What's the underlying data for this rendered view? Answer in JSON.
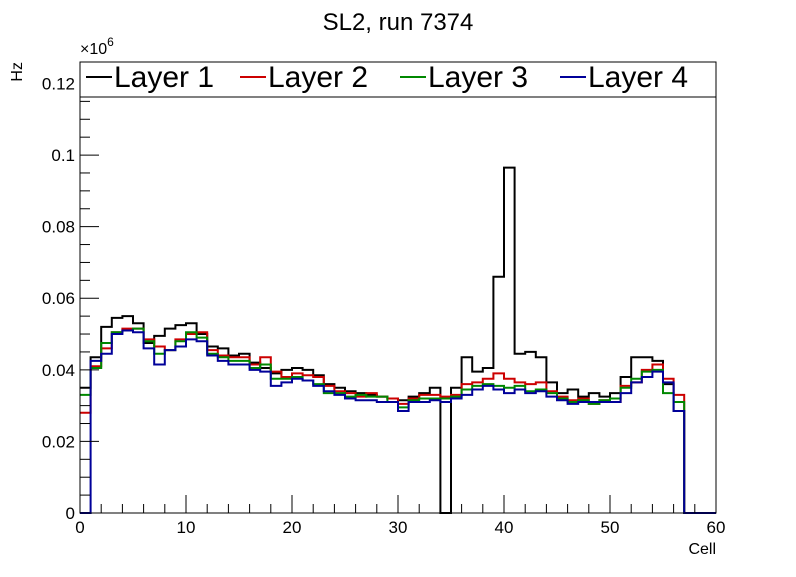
{
  "chart_data": {
    "type": "line",
    "title": "SL2, run 7374",
    "xlabel": "Cell",
    "ylabel": "Hz",
    "xlim": [
      0,
      60
    ],
    "ylim": [
      0,
      0.126
    ],
    "y_exponent_label": "×10",
    "y_exponent_power": "6",
    "x_ticks": [
      0,
      10,
      20,
      30,
      40,
      50,
      60
    ],
    "x_tick_labels": [
      "0",
      "10",
      "20",
      "30",
      "40",
      "50",
      "60"
    ],
    "y_ticks": [
      0,
      0.02,
      0.04,
      0.06,
      0.08,
      0.1,
      0.12
    ],
    "y_tick_labels": [
      "0",
      "0.02",
      "0.04",
      "0.06",
      "0.08",
      "0.1",
      "0.12"
    ],
    "legend_position": "top",
    "grid": false,
    "bin_edges_start": 0,
    "bin_width": 1,
    "series": [
      {
        "name": "Layer 1",
        "color": "#000000",
        "values": [
          0.035,
          0.0435,
          0.052,
          0.0545,
          0.055,
          0.053,
          0.0475,
          0.0495,
          0.0515,
          0.0525,
          0.053,
          0.05,
          0.0465,
          0.046,
          0.044,
          0.0445,
          0.042,
          0.0405,
          0.039,
          0.04,
          0.0405,
          0.04,
          0.0385,
          0.036,
          0.035,
          0.034,
          0.0335,
          0.033,
          0.0325,
          0.032,
          0.0315,
          0.0325,
          0.0335,
          0.035,
          0.0,
          0.035,
          0.0435,
          0.0395,
          0.0405,
          0.066,
          0.0965,
          0.0445,
          0.045,
          0.0435,
          0.0365,
          0.0335,
          0.0345,
          0.0325,
          0.0335,
          0.0325,
          0.0335,
          0.038,
          0.0435,
          0.0435,
          0.0425,
          0.036,
          0.0285,
          0.0,
          0.0,
          0.0
        ]
      },
      {
        "name": "Layer 2",
        "color": "#cc0000",
        "values": [
          0.028,
          0.041,
          0.046,
          0.0505,
          0.0515,
          0.0515,
          0.0485,
          0.0465,
          0.0455,
          0.0485,
          0.05,
          0.0505,
          0.0455,
          0.044,
          0.0435,
          0.0435,
          0.0415,
          0.0435,
          0.0395,
          0.038,
          0.039,
          0.0385,
          0.038,
          0.0355,
          0.034,
          0.0335,
          0.0325,
          0.0335,
          0.0325,
          0.032,
          0.0305,
          0.032,
          0.033,
          0.033,
          0.0325,
          0.033,
          0.036,
          0.0365,
          0.0375,
          0.039,
          0.0375,
          0.0365,
          0.036,
          0.0365,
          0.034,
          0.0325,
          0.0315,
          0.032,
          0.0305,
          0.0315,
          0.031,
          0.0355,
          0.0365,
          0.04,
          0.0415,
          0.0375,
          0.033,
          0.0,
          0.0,
          0.0
        ]
      },
      {
        "name": "Layer 3",
        "color": "#008800",
        "values": [
          0.033,
          0.0405,
          0.0475,
          0.0505,
          0.051,
          0.0515,
          0.048,
          0.0445,
          0.0455,
          0.048,
          0.0505,
          0.049,
          0.0445,
          0.0435,
          0.0425,
          0.0425,
          0.0405,
          0.0415,
          0.0375,
          0.0375,
          0.038,
          0.037,
          0.036,
          0.0335,
          0.0335,
          0.0325,
          0.033,
          0.0325,
          0.0325,
          0.031,
          0.0295,
          0.0315,
          0.032,
          0.032,
          0.032,
          0.0325,
          0.0345,
          0.0355,
          0.036,
          0.0355,
          0.035,
          0.0355,
          0.034,
          0.0345,
          0.0335,
          0.032,
          0.031,
          0.0315,
          0.0305,
          0.0315,
          0.032,
          0.035,
          0.0375,
          0.0395,
          0.04,
          0.0335,
          0.031,
          0.0,
          0.0,
          0.0
        ]
      },
      {
        "name": "Layer 4",
        "color": "#000099",
        "values": [
          0.0,
          0.0425,
          0.0445,
          0.05,
          0.051,
          0.0505,
          0.046,
          0.0415,
          0.0455,
          0.0465,
          0.0485,
          0.048,
          0.044,
          0.0425,
          0.0415,
          0.0415,
          0.04,
          0.0395,
          0.0355,
          0.0365,
          0.0375,
          0.037,
          0.0355,
          0.034,
          0.033,
          0.032,
          0.0315,
          0.0315,
          0.031,
          0.031,
          0.0285,
          0.031,
          0.031,
          0.0315,
          0.031,
          0.032,
          0.033,
          0.0345,
          0.0355,
          0.0345,
          0.0335,
          0.0345,
          0.0335,
          0.034,
          0.0325,
          0.0315,
          0.0305,
          0.031,
          0.031,
          0.031,
          0.031,
          0.0335,
          0.0365,
          0.038,
          0.0395,
          0.0365,
          0.0285,
          0.0,
          0.0,
          0.0
        ]
      }
    ]
  }
}
